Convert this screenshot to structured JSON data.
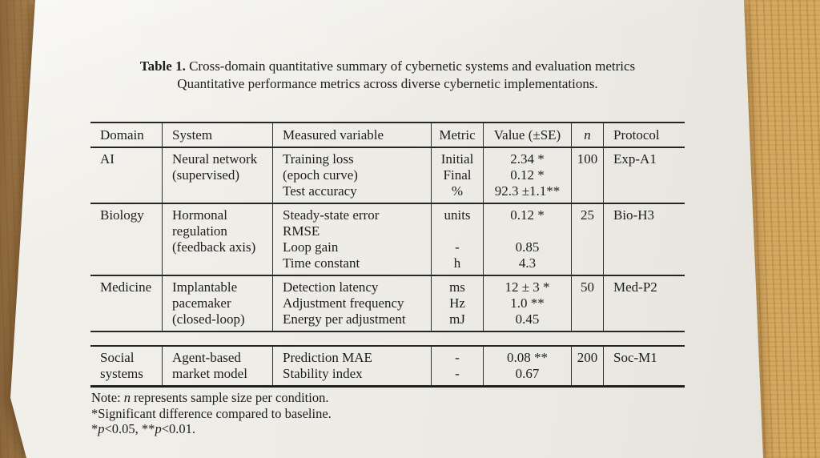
{
  "caption": {
    "label": "Table 1.",
    "line1_rest": " Cross-domain quantitative summary of cybernetic systems and evaluation metrics",
    "line2": "Quantitative performance metrics across diverse cybernetic implementations."
  },
  "table": {
    "headers": {
      "domain": "Domain",
      "system": "System",
      "measured": "Measured variable",
      "metric": "Metric",
      "value": "Value (±SE)",
      "n": "n",
      "protocol": "Protocol"
    },
    "rows": [
      {
        "domain": [
          "AI"
        ],
        "system": [
          "Neural network",
          "(supervised)"
        ],
        "measured": [
          "Training loss",
          "(epoch curve)",
          "Test accuracy"
        ],
        "metric": [
          "Initial",
          "Final",
          "%"
        ],
        "value": [
          "2.34 *",
          "0.12 *",
          "92.3 ±1.1**"
        ],
        "n": "100",
        "protocol": "Exp-A1"
      },
      {
        "domain": [
          "Biology"
        ],
        "system": [
          "Hormonal",
          "regulation",
          "(feedback axis)"
        ],
        "measured": [
          "Steady-state error",
          "RMSE",
          "Loop gain",
          "Time constant"
        ],
        "metric": [
          "units",
          "",
          "-",
          "h"
        ],
        "value": [
          "0.12 *",
          "",
          "0.85",
          "4.3"
        ],
        "n": "25",
        "protocol": "Bio-H3"
      },
      {
        "domain": [
          "Medicine"
        ],
        "system": [
          "Implantable",
          "pacemaker",
          "(closed-loop)"
        ],
        "measured": [
          "Detection latency",
          "Adjustment frequency",
          "Energy per adjustment"
        ],
        "metric": [
          "ms",
          "Hz",
          "mJ"
        ],
        "value": [
          "12 ± 3 *",
          "1.0 **",
          "0.45"
        ],
        "n": "50",
        "protocol": "Med-P2"
      },
      {
        "domain": [
          "Social",
          "systems"
        ],
        "system": [
          "Agent-based",
          "market model"
        ],
        "measured": [
          "Prediction MAE",
          "Stability index"
        ],
        "metric": [
          "-",
          "-"
        ],
        "value": [
          "0.08 **",
          "0.67"
        ],
        "n": "200",
        "protocol": "Soc-M1"
      }
    ]
  },
  "notes": {
    "note1": {
      "prefix": "Note: ",
      "italic": "n",
      "rest": " represents sample size per condition."
    },
    "note2": "*Significant difference compared to baseline.",
    "note3": {
      "s1": "*",
      "i1": "p",
      "s2": "<0.05, **",
      "i2": "p",
      "s3": "<0.01."
    }
  },
  "colors": {
    "desk_wood": "#cfa25d",
    "paper": "#eeece6",
    "ink": "#1d1d1d",
    "rule": "#262626"
  }
}
